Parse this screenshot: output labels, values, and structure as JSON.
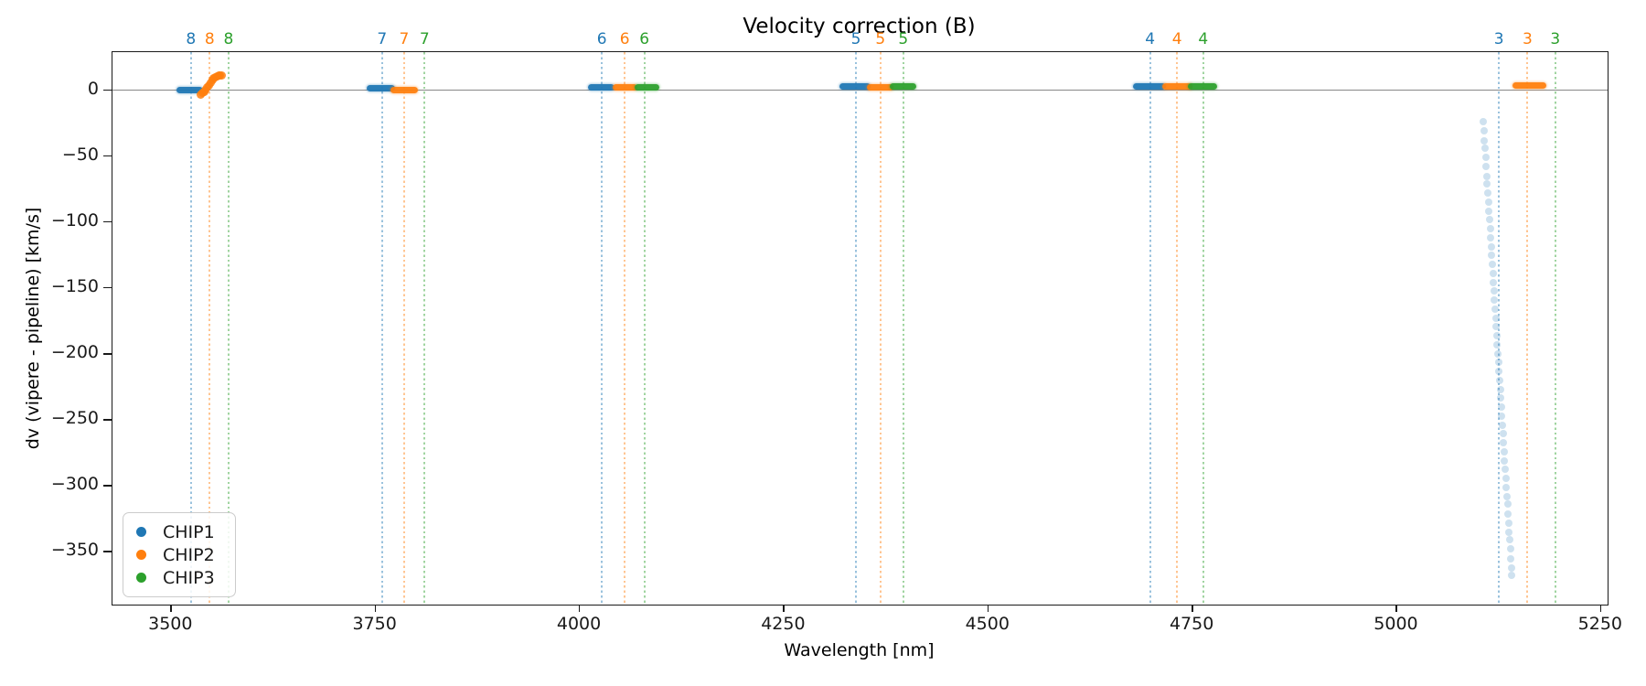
{
  "chart_data": {
    "type": "scatter",
    "title": "Velocity correction (B)",
    "xlabel": "Wavelength [nm]",
    "ylabel": "dv (vipere - pipeline) [km/s]",
    "xlim": [
      3428,
      5258
    ],
    "ylim": [
      -390,
      29
    ],
    "xticks": [
      3500,
      3750,
      4000,
      4250,
      4500,
      4750,
      5000,
      5250
    ],
    "yticks": [
      0,
      -50,
      -100,
      -150,
      -200,
      -250,
      -300,
      -350
    ],
    "grid": false,
    "zero_line": {
      "y": 0,
      "color": "#888888"
    },
    "legend": {
      "position": "lower-left",
      "entries": [
        {
          "label": "CHIP1",
          "color": "#1f77b4"
        },
        {
          "label": "CHIP2",
          "color": "#ff7f0e"
        },
        {
          "label": "CHIP3",
          "color": "#2ca02c"
        }
      ]
    },
    "series_colors": {
      "CHIP1": "#1f77b4",
      "CHIP2": "#ff7f0e",
      "CHIP3": "#2ca02c"
    },
    "order_boundaries": [
      {
        "order": "8",
        "lines": [
          {
            "chip": "CHIP1",
            "wavelength": 3524
          },
          {
            "chip": "CHIP2",
            "wavelength": 3547
          },
          {
            "chip": "CHIP3",
            "wavelength": 3570
          }
        ]
      },
      {
        "order": "7",
        "lines": [
          {
            "chip": "CHIP1",
            "wavelength": 3758
          },
          {
            "chip": "CHIP2",
            "wavelength": 3785
          },
          {
            "chip": "CHIP3",
            "wavelength": 3810
          }
        ]
      },
      {
        "order": "6",
        "lines": [
          {
            "chip": "CHIP1",
            "wavelength": 4027
          },
          {
            "chip": "CHIP2",
            "wavelength": 4055
          },
          {
            "chip": "CHIP3",
            "wavelength": 4079
          }
        ]
      },
      {
        "order": "5",
        "lines": [
          {
            "chip": "CHIP1",
            "wavelength": 4338
          },
          {
            "chip": "CHIP2",
            "wavelength": 4368
          },
          {
            "chip": "CHIP3",
            "wavelength": 4396
          }
        ]
      },
      {
        "order": "4",
        "lines": [
          {
            "chip": "CHIP1",
            "wavelength": 4698
          },
          {
            "chip": "CHIP2",
            "wavelength": 4731
          },
          {
            "chip": "CHIP3",
            "wavelength": 4763
          }
        ]
      },
      {
        "order": "3",
        "lines": [
          {
            "chip": "CHIP1",
            "wavelength": 5125
          },
          {
            "chip": "CHIP2",
            "wavelength": 5160
          },
          {
            "chip": "CHIP3",
            "wavelength": 5194
          }
        ]
      }
    ],
    "clusters": [
      {
        "chip": "CHIP1",
        "order": "8",
        "x_start": 3510,
        "x_end": 3536,
        "y": 0.5
      },
      {
        "chip": "CHIP1",
        "order": "7",
        "x_start": 3743,
        "x_end": 3771,
        "y": 1.5
      },
      {
        "chip": "CHIP2",
        "order": "7",
        "x_start": 3772,
        "x_end": 3799,
        "y": 0.5
      },
      {
        "chip": "CHIP1",
        "order": "6",
        "x_start": 4013,
        "x_end": 4039,
        "y": 2
      },
      {
        "chip": "CHIP2",
        "order": "6",
        "x_start": 4044,
        "x_end": 4067,
        "y": 2
      },
      {
        "chip": "CHIP3",
        "order": "6",
        "x_start": 4071,
        "x_end": 4094,
        "y": 2
      },
      {
        "chip": "CHIP1",
        "order": "5",
        "x_start": 4321,
        "x_end": 4353,
        "y": 3
      },
      {
        "chip": "CHIP2",
        "order": "5",
        "x_start": 4355,
        "x_end": 4380,
        "y": 2.5
      },
      {
        "chip": "CHIP3",
        "order": "5",
        "x_start": 4383,
        "x_end": 4408,
        "y": 3
      },
      {
        "chip": "CHIP1",
        "order": "4",
        "x_start": 4681,
        "x_end": 4714,
        "y": 3
      },
      {
        "chip": "CHIP2",
        "order": "4",
        "x_start": 4716,
        "x_end": 4746,
        "y": 3
      },
      {
        "chip": "CHIP3",
        "order": "4",
        "x_start": 4748,
        "x_end": 4777,
        "y": 3
      },
      {
        "chip": "CHIP2",
        "order": "3",
        "x_start": 5145,
        "x_end": 5180,
        "y": 4
      }
    ],
    "rising_segment": {
      "chip": "CHIP2",
      "order": "8",
      "points": [
        [
          3536,
          -3
        ],
        [
          3538,
          -2
        ],
        [
          3540,
          -1
        ],
        [
          3542,
          0
        ],
        [
          3544,
          2
        ],
        [
          3546,
          4
        ],
        [
          3548,
          6
        ],
        [
          3550,
          8
        ],
        [
          3552,
          9
        ],
        [
          3554,
          10
        ],
        [
          3556,
          10.5
        ],
        [
          3558,
          11
        ],
        [
          3560,
          11
        ],
        [
          3562,
          11
        ]
      ]
    },
    "outlier_trail": {
      "chip": "CHIP1",
      "order": "3",
      "alpha": 0.22,
      "points": [
        [
          5106.0,
          -24
        ],
        [
          5106.7,
          -31
        ],
        [
          5107.4,
          -38
        ],
        [
          5108.1,
          -44
        ],
        [
          5108.7,
          -51
        ],
        [
          5109.4,
          -58
        ],
        [
          5110.1,
          -65
        ],
        [
          5110.8,
          -71
        ],
        [
          5111.5,
          -78
        ],
        [
          5112.2,
          -85
        ],
        [
          5112.9,
          -92
        ],
        [
          5113.5,
          -98
        ],
        [
          5114.2,
          -105
        ],
        [
          5114.9,
          -112
        ],
        [
          5115.6,
          -119
        ],
        [
          5116.3,
          -125
        ],
        [
          5117.0,
          -132
        ],
        [
          5117.6,
          -139
        ],
        [
          5118.3,
          -146
        ],
        [
          5119.0,
          -152
        ],
        [
          5119.7,
          -159
        ],
        [
          5120.4,
          -166
        ],
        [
          5121.1,
          -173
        ],
        [
          5121.8,
          -179
        ],
        [
          5122.4,
          -186
        ],
        [
          5123.1,
          -193
        ],
        [
          5123.8,
          -200
        ],
        [
          5124.5,
          -206
        ],
        [
          5125.2,
          -213
        ],
        [
          5125.9,
          -220
        ],
        [
          5126.6,
          -227
        ],
        [
          5127.2,
          -233
        ],
        [
          5127.9,
          -240
        ],
        [
          5128.6,
          -247
        ],
        [
          5129.3,
          -254
        ],
        [
          5130.0,
          -260
        ],
        [
          5130.7,
          -267
        ],
        [
          5131.3,
          -274
        ],
        [
          5132.0,
          -281
        ],
        [
          5132.7,
          -287
        ],
        [
          5133.4,
          -294
        ],
        [
          5134.1,
          -301
        ],
        [
          5134.8,
          -308
        ],
        [
          5135.5,
          -314
        ],
        [
          5136.1,
          -321
        ],
        [
          5136.8,
          -328
        ],
        [
          5137.5,
          -335
        ],
        [
          5138.2,
          -341
        ],
        [
          5138.9,
          -348
        ],
        [
          5139.6,
          -355
        ],
        [
          5140.2,
          -362
        ],
        [
          5140.9,
          -368
        ]
      ]
    }
  }
}
